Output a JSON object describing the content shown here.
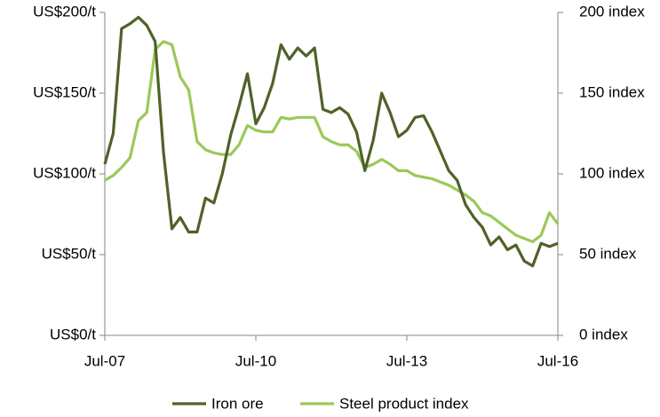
{
  "chart_data": {
    "type": "line",
    "categories": [
      "Jul-07",
      null,
      null,
      null,
      null,
      null,
      null,
      null,
      null,
      null,
      null,
      null,
      null,
      null,
      null,
      null,
      null,
      null,
      "Jul-10",
      null,
      null,
      null,
      null,
      null,
      null,
      null,
      null,
      null,
      null,
      null,
      null,
      null,
      null,
      null,
      null,
      null,
      "Jul-13",
      null,
      null,
      null,
      null,
      null,
      null,
      null,
      null,
      null,
      null,
      null,
      null,
      null,
      null,
      null,
      null,
      null,
      "Jul-16"
    ],
    "series": [
      {
        "name": "Iron ore",
        "color": "#4f6228",
        "axis": "y",
        "values": [
          106,
          125,
          190,
          193,
          197,
          192,
          182,
          113,
          66,
          73,
          64,
          64,
          85,
          82,
          100,
          124,
          142,
          162,
          131,
          141,
          156,
          180,
          171,
          178,
          173,
          178,
          140,
          138,
          141,
          137,
          126,
          102,
          121,
          150,
          138,
          123,
          127,
          135,
          136,
          126,
          114,
          102,
          96,
          81,
          73,
          67,
          56,
          61,
          53,
          56,
          46,
          43,
          57,
          55,
          57
        ]
      },
      {
        "name": "Steel product index",
        "color": "#9bc95a",
        "axis": "y2",
        "values": [
          96,
          99,
          104,
          110,
          133,
          138,
          177,
          182,
          180,
          160,
          152,
          120,
          115,
          113,
          112,
          112,
          118,
          130,
          127,
          126,
          126,
          135,
          134,
          135,
          135,
          135,
          123,
          120,
          118,
          118,
          114,
          104,
          106,
          109,
          106,
          102,
          102,
          99,
          98,
          97,
          95,
          93,
          90,
          87,
          83,
          76,
          74,
          70,
          66,
          62,
          60,
          58,
          62,
          76,
          69
        ]
      }
    ],
    "ylim": [
      0,
      200
    ],
    "yticks": [
      {
        "value": 0,
        "label": "US$0/t"
      },
      {
        "value": 50,
        "label": "US$50/t"
      },
      {
        "value": 100,
        "label": "US$100/t"
      },
      {
        "value": 150,
        "label": "US$150/t"
      },
      {
        "value": 200,
        "label": "US$200/t"
      }
    ],
    "y2lim": [
      0,
      200
    ],
    "y2ticks": [
      {
        "value": 0,
        "label": "0 index"
      },
      {
        "value": 50,
        "label": "50 index"
      },
      {
        "value": 100,
        "label": "100 index"
      },
      {
        "value": 150,
        "label": "150 index"
      },
      {
        "value": 200,
        "label": "200 index"
      }
    ],
    "grid": false,
    "legend": "bottom"
  }
}
